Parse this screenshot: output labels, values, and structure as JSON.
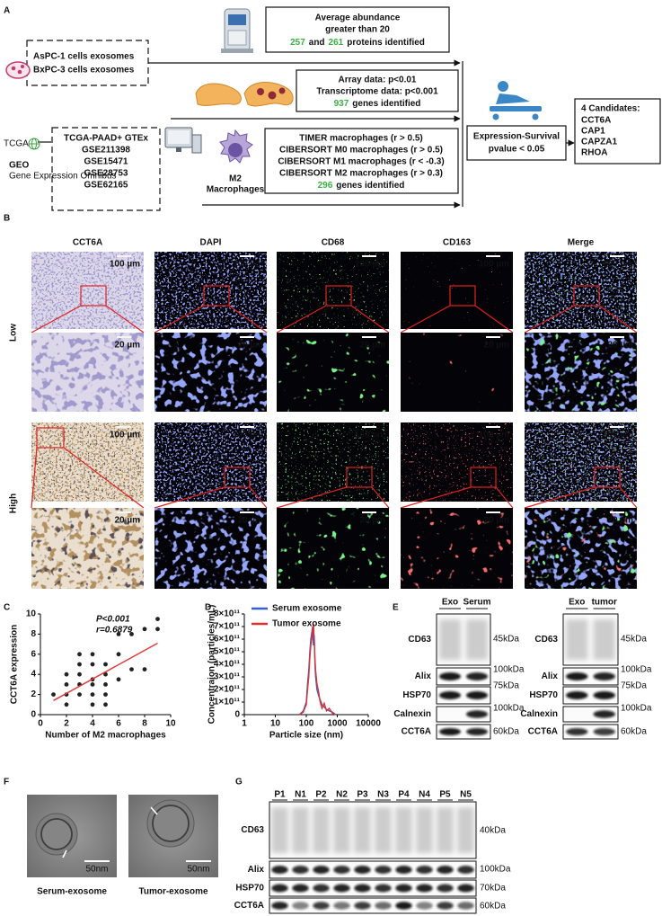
{
  "panel_labels": [
    "A",
    "B",
    "C",
    "D",
    "E",
    "F",
    "G"
  ],
  "panel_a": {
    "highlight_color": "#3cb043",
    "abundance": {
      "lines": [
        "Average abundance",
        "greater than 20"
      ],
      "n1": "257",
      "and": "and",
      "n2": "261",
      "tail": "proteins identified"
    },
    "cell_lines": [
      "AsPC-1 cells exosomes",
      "BxPC-3 cells exosomes"
    ],
    "expression": {
      "lines": [
        "Array data: p<0.01",
        "Transcriptome data: p<0.001"
      ],
      "n": "937",
      "tail": "genes identified"
    },
    "logos": {
      "tcga": "TCGA",
      "geo": "GEO",
      "geo_sub": "Gene Expression Omnibus"
    },
    "datasets": [
      "TCGA-PAAD+ GTEx",
      "GSE211398",
      "GSE15471",
      "GSE28753",
      "GSE62165"
    ],
    "macrophage_label": [
      "M2",
      "Macrophages"
    ],
    "immune": {
      "lines": [
        "TIMER macrophages (r > 0.5)",
        "CIBERSORT M0 macrophages (r > 0.5)",
        "CIBERSORT M1 macrophages (r < -0.3)",
        "CIBERSORT M2 macrophages (r > 0.3)"
      ],
      "n": "296",
      "tail": "genes identified"
    },
    "survival": [
      "Expression-Survival",
      "pvalue < 0.05"
    ],
    "candidates": {
      "title": "4 Candidates:",
      "items": [
        "CCT6A",
        "CAP1",
        "CAPZA1",
        "RHOA"
      ],
      "colors": [
        "#e0301e",
        "#3a5fb0",
        "#3a5fb0",
        "#3a5fb0"
      ]
    }
  },
  "panel_b": {
    "columns": [
      "CCT6A",
      "DAPI",
      "CD68",
      "CD163",
      "Merge"
    ],
    "colors": [
      "#111111",
      "#3b4fb8",
      "#2fa82f",
      "#d42a2a",
      "#111111"
    ],
    "rows": [
      "Low",
      "High"
    ],
    "scale_large": "100 µm",
    "scale_small": "20 µm"
  },
  "chart_data": [
    {
      "type": "scatter",
      "y_label": "CCT6A expression",
      "x_label": "Number of M2 macrophages",
      "annotations": [
        "P<0.001",
        "r=0.6879"
      ],
      "x": [
        1,
        2,
        2,
        2,
        2,
        3,
        3,
        3,
        3,
        3,
        4,
        4,
        4,
        4,
        4,
        4,
        5,
        5,
        5,
        5,
        5,
        6,
        6,
        6,
        7,
        7,
        8,
        8,
        9,
        9
      ],
      "values": [
        2,
        1,
        2,
        3,
        4,
        2,
        3,
        4,
        5,
        6,
        1,
        2,
        3,
        3.5,
        5,
        6,
        1,
        2,
        3,
        4,
        5,
        3.5,
        6,
        8,
        4.5,
        8,
        4.5,
        8.5,
        8.5,
        9.5
      ],
      "color": "#222222",
      "fit": {
        "x": [
          1,
          9
        ],
        "values": [
          1.4,
          7.1
        ],
        "color": "#e33b3b"
      },
      "xlim": [
        0,
        10
      ],
      "ylim": [
        0,
        10
      ],
      "xticks": [
        0,
        2,
        4,
        6,
        8,
        10
      ],
      "yticks": [
        0,
        2,
        4,
        6,
        8,
        10
      ]
    },
    {
      "type": "line",
      "y_label": "Concentraion (particles/mL)",
      "x_label": "Particle size (nm)",
      "x": [
        60,
        80,
        100,
        110,
        120,
        130,
        140,
        150,
        160,
        170,
        180,
        190,
        200,
        220,
        250,
        280,
        320,
        380,
        450,
        550,
        700,
        900
      ],
      "series": [
        {
          "name": "Serum exosome",
          "color": "#3a5fc8",
          "values": [
            0,
            30000000000.0,
            100000000000.0,
            250000000000.0,
            350000000000.0,
            500000000000.0,
            600000000000.0,
            650000000000.0,
            700000000000.0,
            550000000000.0,
            630000000000.0,
            400000000000.0,
            300000000000.0,
            200000000000.0,
            150000000000.0,
            120000000000.0,
            80000000000.0,
            60000000000.0,
            40000000000.0,
            30000000000.0,
            20000000000.0,
            0
          ]
        },
        {
          "name": "Tumor exosome",
          "color": "#e03030",
          "values": [
            0,
            20000000000.0,
            80000000000.0,
            200000000000.0,
            300000000000.0,
            450000000000.0,
            550000000000.0,
            600000000000.0,
            680000000000.0,
            720000000000.0,
            600000000000.0,
            450000000000.0,
            350000000000.0,
            250000000000.0,
            180000000000.0,
            100000000000.0,
            50000000000.0,
            90000000000.0,
            30000000000.0,
            50000000000.0,
            10000000000.0,
            0
          ]
        }
      ],
      "xscale": "log",
      "legend": "top-left",
      "xlim": [
        1,
        10000
      ],
      "xticks": [
        1,
        10,
        100,
        1000,
        10000
      ],
      "ylim": [
        0,
        800000000000.0
      ],
      "yticks": [
        0,
        {
          "value": 100000000000.0,
          "label": "1×10¹¹"
        },
        {
          "value": 200000000000.0,
          "label": "2×10¹¹"
        },
        {
          "value": 300000000000.0,
          "label": "3×10¹¹"
        },
        {
          "value": 400000000000.0,
          "label": "4×10¹¹"
        },
        {
          "value": 500000000000.0,
          "label": "5×10¹¹"
        },
        {
          "value": 600000000000.0,
          "label": "6×10¹¹"
        },
        {
          "value": 700000000000.0,
          "label": "7×10¹¹"
        },
        {
          "value": 800000000000.0,
          "label": "8×10¹¹"
        }
      ]
    }
  ],
  "panel_e": {
    "blots": [
      {
        "lanes": [
          "Exo",
          "Serum"
        ]
      },
      {
        "lanes": [
          "Exo",
          "tumor"
        ]
      }
    ],
    "markers": [
      "CD63",
      "Alix",
      "HSP70",
      "Calnexin",
      "CCT6A"
    ],
    "sizes": [
      "45kDa",
      "100kDa",
      "75kDa",
      "100kDa",
      "60kDa"
    ]
  },
  "panel_f": {
    "scale": "50nm",
    "captions": [
      "Serum-exosome",
      "Tumor-exosome"
    ]
  },
  "panel_g": {
    "lanes": [
      "P1",
      "N1",
      "P2",
      "N2",
      "P3",
      "N3",
      "P4",
      "N4",
      "P5",
      "N5"
    ],
    "markers": [
      "CD63",
      "Alix",
      "HSP70",
      "CCT6A"
    ],
    "sizes": [
      "40kDa",
      "100kDa",
      "70kDa",
      "60kDa"
    ]
  }
}
